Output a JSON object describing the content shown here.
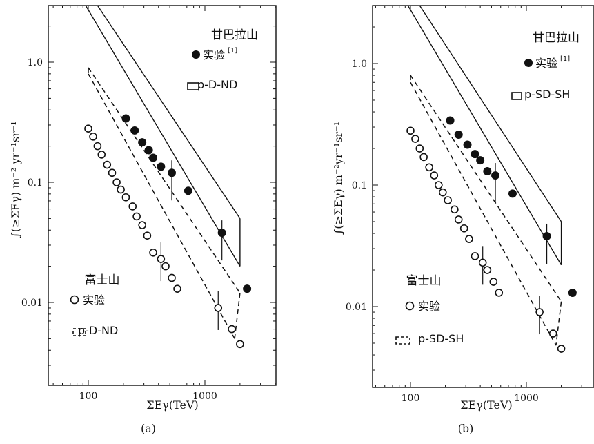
{
  "chart_data": [
    {
      "type": "scatter",
      "panel_label": "(a)",
      "xlabel": "ΣEγ(TeV)",
      "ylabel": "∫(≥ΣEγ)  m⁻² yr⁻¹sr⁻¹",
      "xscale": "log",
      "yscale": "log",
      "xlim": [
        50,
        3000
      ],
      "ylim": [
        0.001,
        3.0
      ],
      "x_ticks": [
        {
          "value": 100,
          "label": "100"
        },
        {
          "value": 1000,
          "label": "1000"
        }
      ],
      "y_ticks": [
        {
          "value": 1.0,
          "label": "1.0"
        },
        {
          "value": 0.1,
          "label": "0.1"
        },
        {
          "value": 0.01,
          "label": "0.01"
        }
      ],
      "legend": {
        "group_chacaltaya": "甘巴拉山",
        "chacaltaya_exp": "实验",
        "chacaltaya_ref": "[1]",
        "chacaltaya_model": "p-D-ND",
        "group_fuji": "富士山",
        "fuji_exp": "实验",
        "fuji_model": "p-D-ND"
      },
      "series": [
        {
          "name": "甘巴拉山 实验",
          "marker": "filled-circle",
          "points": [
            [
              210,
              0.34
            ],
            [
              250,
              0.27
            ],
            [
              290,
              0.215
            ],
            [
              330,
              0.185
            ],
            [
              360,
              0.16
            ],
            [
              420,
              0.135
            ],
            [
              520,
              0.12
            ],
            [
              720,
              0.085
            ],
            [
              1400,
              0.038
            ],
            [
              2300,
              0.013
            ]
          ]
        },
        {
          "name": "富士山 实验",
          "marker": "open-circle",
          "points": [
            [
              100,
              0.28
            ],
            [
              110,
              0.24
            ],
            [
              120,
              0.2
            ],
            [
              130,
              0.17
            ],
            [
              145,
              0.14
            ],
            [
              160,
              0.12
            ],
            [
              175,
              0.1
            ],
            [
              190,
              0.087
            ],
            [
              210,
              0.075
            ],
            [
              240,
              0.063
            ],
            [
              260,
              0.052
            ],
            [
              290,
              0.044
            ],
            [
              320,
              0.036
            ],
            [
              360,
              0.026
            ],
            [
              420,
              0.023
            ],
            [
              460,
              0.02
            ],
            [
              520,
              0.016
            ],
            [
              580,
              0.013
            ],
            [
              1300,
              0.009
            ],
            [
              1700,
              0.006
            ],
            [
              2000,
              0.0045
            ]
          ]
        }
      ],
      "model_band_solid": {
        "name": "p-D-ND",
        "lower": [
          [
            95,
            3.0
          ],
          [
            2000,
            0.02
          ]
        ],
        "upper": [
          [
            120,
            3.0
          ],
          [
            2000,
            0.05
          ]
        ]
      },
      "model_band_dashed": {
        "name": "p-D-ND",
        "lower": [
          [
            100,
            0.8
          ],
          [
            1800,
            0.005
          ]
        ],
        "upper": [
          [
            100,
            0.9
          ],
          [
            2000,
            0.012
          ]
        ]
      }
    },
    {
      "type": "scatter",
      "panel_label": "(b)",
      "xlabel": "ΣEγ(TeV)",
      "ylabel": "∫(≥ΣEγ) m⁻²yr⁻¹sr⁻¹",
      "xscale": "log",
      "yscale": "log",
      "xlim": [
        50,
        3000
      ],
      "ylim": [
        0.001,
        3.0
      ],
      "x_ticks": [
        {
          "value": 100,
          "label": "100"
        },
        {
          "value": 1000,
          "label": "1000"
        }
      ],
      "y_ticks": [
        {
          "value": 1.0,
          "label": "1.0"
        },
        {
          "value": 0.1,
          "label": "0.1"
        },
        {
          "value": 0.01,
          "label": "0.01"
        }
      ],
      "legend": {
        "group_chacaltaya": "甘巴拉山",
        "chacaltaya_exp": "实验",
        "chacaltaya_ref": "[1]",
        "chacaltaya_model": "p-SD-SH",
        "group_fuji": "富士山",
        "fuji_exp": "实验",
        "fuji_model": "p-SD-SH"
      },
      "series": [
        {
          "name": "甘巴拉山 实验",
          "marker": "filled-circle",
          "points": [
            [
              220,
              0.34
            ],
            [
              260,
              0.26
            ],
            [
              310,
              0.215
            ],
            [
              360,
              0.18
            ],
            [
              400,
              0.16
            ],
            [
              460,
              0.13
            ],
            [
              540,
              0.12
            ],
            [
              760,
              0.085
            ],
            [
              1500,
              0.038
            ],
            [
              2500,
              0.013
            ]
          ]
        },
        {
          "name": "富士山 实验",
          "marker": "open-circle",
          "points": [
            [
              100,
              0.28
            ],
            [
              110,
              0.24
            ],
            [
              120,
              0.2
            ],
            [
              130,
              0.17
            ],
            [
              145,
              0.14
            ],
            [
              160,
              0.12
            ],
            [
              175,
              0.1
            ],
            [
              190,
              0.087
            ],
            [
              210,
              0.075
            ],
            [
              240,
              0.063
            ],
            [
              260,
              0.052
            ],
            [
              290,
              0.044
            ],
            [
              320,
              0.036
            ],
            [
              360,
              0.026
            ],
            [
              420,
              0.023
            ],
            [
              460,
              0.02
            ],
            [
              520,
              0.016
            ],
            [
              580,
              0.013
            ],
            [
              1300,
              0.009
            ],
            [
              1700,
              0.006
            ],
            [
              2000,
              0.0045
            ]
          ]
        }
      ],
      "model_band_solid": {
        "name": "p-SD-SH",
        "lower": [
          [
            95,
            3.0
          ],
          [
            2000,
            0.022
          ]
        ],
        "upper": [
          [
            120,
            3.0
          ],
          [
            2000,
            0.05
          ]
        ]
      },
      "model_band_dashed": {
        "name": "p-SD-SH",
        "lower": [
          [
            100,
            0.7
          ],
          [
            1800,
            0.0048
          ]
        ],
        "upper": [
          [
            100,
            0.8
          ],
          [
            2000,
            0.011
          ]
        ]
      }
    }
  ]
}
